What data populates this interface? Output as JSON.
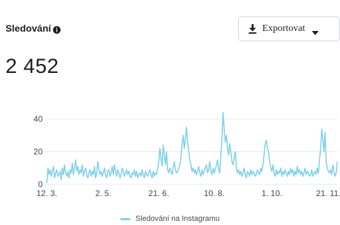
{
  "header": {
    "title": "Sledování",
    "info_icon": "info-icon"
  },
  "export": {
    "label": "Exportovat",
    "icon": "download-icon",
    "caret": "caret-down-icon"
  },
  "summary": {
    "value": "2 452"
  },
  "colors": {
    "series": "#7fd0ea",
    "grid": "#e6e8eb",
    "axis_text": "#444950"
  },
  "chart_data": {
    "type": "line",
    "title": "",
    "xlabel": "",
    "ylabel": "",
    "ylim": [
      0,
      45
    ],
    "yticks": [
      0,
      20,
      40
    ],
    "grid": true,
    "legend_position": "bottom-center",
    "x_start": "12. 3.",
    "x_ticks": [
      {
        "label": "12. 3.",
        "day": 0
      },
      {
        "label": "2. 5.",
        "day": 51
      },
      {
        "label": "21. 6.",
        "day": 101
      },
      {
        "label": "10. 8.",
        "day": 151
      },
      {
        "label": "1. 10.",
        "day": 203
      },
      {
        "label": "21. 11.",
        "day": 254
      }
    ],
    "series": [
      {
        "name": "Sledování na Instagramu",
        "values": [
          1,
          10,
          6,
          9,
          5,
          8,
          11,
          4,
          7,
          9,
          5,
          6,
          8,
          3,
          10,
          6,
          12,
          7,
          5,
          8,
          4,
          9,
          7,
          13,
          6,
          10,
          15,
          8,
          11,
          6,
          9,
          7,
          12,
          5,
          8,
          10,
          6,
          4,
          7,
          9,
          5,
          8,
          6,
          11,
          4,
          7,
          14,
          9,
          6,
          8,
          5,
          7,
          10,
          6,
          4,
          8,
          9,
          5,
          7,
          11,
          6,
          12,
          8,
          5,
          9,
          7,
          4,
          6,
          10,
          8,
          5,
          7,
          9,
          6,
          8,
          5,
          4,
          7,
          6,
          9,
          5,
          8,
          4,
          6,
          7,
          5,
          9,
          6,
          4,
          8,
          6,
          5,
          7,
          9,
          6,
          4,
          8,
          5,
          7,
          6,
          10,
          14,
          22,
          16,
          11,
          24,
          18,
          12,
          20,
          9,
          7,
          10,
          8,
          6,
          11,
          14,
          9,
          7,
          8,
          10,
          12,
          16,
          25,
          30,
          22,
          28,
          35,
          26,
          20,
          15,
          12,
          8,
          10,
          7,
          9,
          6,
          8,
          11,
          7,
          5,
          9,
          6,
          8,
          10,
          12,
          7,
          9,
          14,
          8,
          6,
          10,
          7,
          9,
          12,
          15,
          9,
          7,
          18,
          28,
          44,
          34,
          26,
          30,
          22,
          18,
          25,
          20,
          14,
          12,
          16,
          20,
          10,
          7,
          9,
          6,
          8,
          5,
          7,
          10,
          6,
          4,
          8,
          7,
          5,
          9,
          6,
          8,
          7,
          5,
          6,
          9,
          7,
          6,
          10,
          8,
          12,
          18,
          25,
          27,
          22,
          20,
          14,
          10,
          8,
          12,
          7,
          5,
          9,
          6,
          8,
          7,
          10,
          5,
          8,
          6,
          9,
          7,
          5,
          8,
          6,
          10,
          7,
          9,
          5,
          8,
          6,
          11,
          7,
          9,
          6,
          8,
          5,
          7,
          10,
          6,
          8,
          7,
          5,
          6,
          9,
          5,
          7,
          8,
          6,
          10,
          7,
          15,
          22,
          34,
          28,
          20,
          32,
          14,
          10,
          8,
          7,
          9,
          6,
          12,
          8,
          5,
          7,
          14
        ]
      }
    ]
  }
}
